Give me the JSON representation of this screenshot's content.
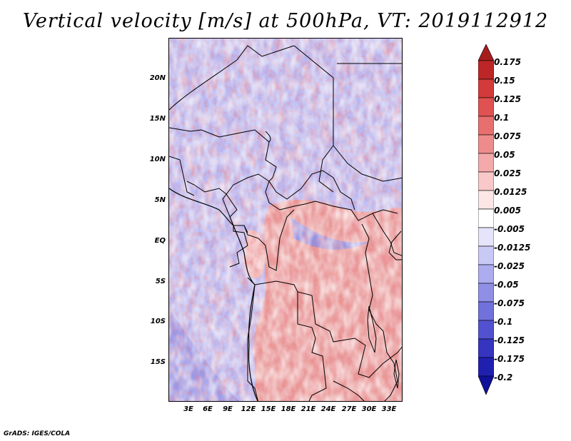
{
  "title": "Vertical velocity [m/s] at 500hPa, VT: 2019112912",
  "credit": "GrADS: IGES/COLA",
  "map": {
    "region": "Central Africa",
    "lon_range": [
      0,
      36
    ],
    "lat_range": [
      -20,
      25
    ],
    "lat_labels": [
      "20N",
      "15N",
      "10N",
      "5N",
      "EQ",
      "5S",
      "10S",
      "15S"
    ],
    "lat_values": [
      20,
      15,
      10,
      5,
      0,
      -5,
      -10,
      -15
    ],
    "lon_labels": [
      "3E",
      "6E",
      "9E",
      "12E",
      "15E",
      "18E",
      "21E",
      "24E",
      "27E",
      "30E",
      "33E"
    ],
    "lon_values": [
      3,
      6,
      9,
      12,
      15,
      18,
      21,
      24,
      27,
      30,
      33
    ]
  },
  "colorbar": {
    "labels": [
      "0.175",
      "0.15",
      "0.125",
      "0.1",
      "0.075",
      "0.05",
      "0.025",
      "0.0125",
      "0.005",
      "-0.005",
      "-0.0125",
      "-0.025",
      "-0.05",
      "-0.075",
      "-0.1",
      "-0.125",
      "-0.175",
      "-0.2"
    ],
    "colors": [
      "#a51d1d",
      "#bd2626",
      "#d33a3a",
      "#e05252",
      "#e86f6f",
      "#ee8c8c",
      "#f4aaaa",
      "#f9c8c8",
      "#fde6e6",
      "#ffffff",
      "#e4e4fb",
      "#c9c9f6",
      "#acacef",
      "#8f8fe6",
      "#7171dc",
      "#5252d0",
      "#3535c0",
      "#2020b0",
      "#10109a"
    ]
  }
}
